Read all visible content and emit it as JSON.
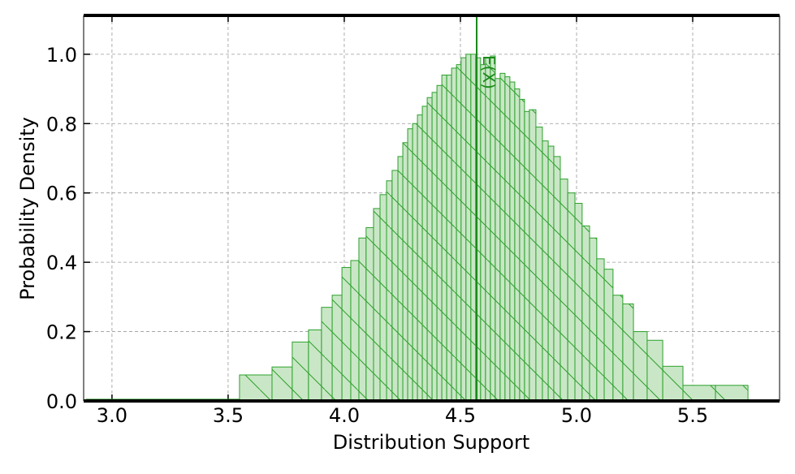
{
  "chart_data": {
    "type": "histogram",
    "xlabel": "Distribution Support",
    "ylabel": "Probability Density",
    "bins": [
      2.89,
      3.549,
      3.689,
      3.776,
      3.846,
      3.902,
      3.948,
      3.99,
      4.028,
      4.063,
      4.094,
      4.126,
      4.154,
      4.182,
      4.206,
      4.231,
      4.252,
      4.273,
      4.294,
      4.315,
      4.336,
      4.357,
      4.378,
      4.399,
      4.42,
      4.441,
      4.462,
      4.483,
      4.503,
      4.524,
      4.545,
      4.566,
      4.587,
      4.608,
      4.629,
      4.65,
      4.671,
      4.692,
      4.713,
      4.734,
      4.755,
      4.776,
      4.797,
      4.825,
      4.853,
      4.878,
      4.902,
      4.93,
      4.962,
      4.993,
      5.024,
      5.056,
      5.087,
      5.119,
      5.157,
      5.199,
      5.245,
      5.304,
      5.371,
      5.458,
      5.598,
      5.738
    ],
    "counts": [
      0.005,
      0.075,
      0.098,
      0.17,
      0.205,
      0.27,
      0.305,
      0.385,
      0.405,
      0.47,
      0.5,
      0.555,
      0.595,
      0.635,
      0.665,
      0.705,
      0.745,
      0.785,
      0.8,
      0.825,
      0.85,
      0.875,
      0.89,
      0.91,
      0.94,
      0.94,
      0.96,
      0.97,
      0.99,
      1.0,
      1.0,
      0.99,
      0.97,
      0.99,
      0.995,
      0.93,
      0.945,
      0.935,
      0.92,
      0.9,
      0.87,
      0.835,
      0.84,
      0.79,
      0.75,
      0.735,
      0.705,
      0.64,
      0.6,
      0.57,
      0.505,
      0.47,
      0.41,
      0.38,
      0.305,
      0.28,
      0.2,
      0.175,
      0.1,
      0.045,
      0.045
    ],
    "color": "#c9e7c6",
    "edgecolor": "#2ca02c",
    "vline": {
      "x": 4.57,
      "label": "E(X)",
      "color": "#1a8a1a"
    },
    "xlim": [
      2.878,
      5.874
    ],
    "ylim": [
      0,
      1.112
    ],
    "xticks": [
      {
        "value": 3.0,
        "label": "3.0"
      },
      {
        "value": 3.5,
        "label": "3.5"
      },
      {
        "value": 4.0,
        "label": "4.0"
      },
      {
        "value": 4.5,
        "label": "4.5"
      },
      {
        "value": 5.0,
        "label": "5.0"
      },
      {
        "value": 5.5,
        "label": "5.5"
      }
    ],
    "yticks": [
      {
        "value": 0.0,
        "label": "0.0"
      },
      {
        "value": 0.2,
        "label": "0.2"
      },
      {
        "value": 0.4,
        "label": "0.4"
      },
      {
        "value": 0.6,
        "label": "0.6"
      },
      {
        "value": 0.8,
        "label": "0.8"
      },
      {
        "value": 1.0,
        "label": "1.0"
      }
    ],
    "grid": true
  }
}
